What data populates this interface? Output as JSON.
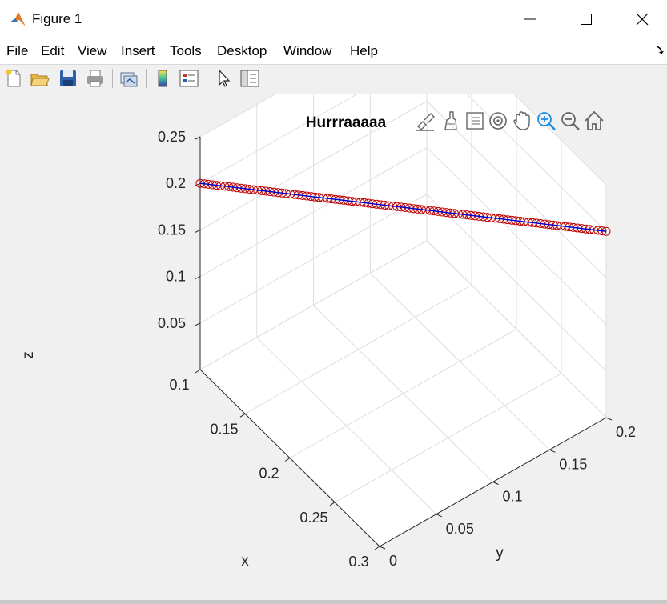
{
  "window": {
    "title": "Figure 1"
  },
  "menu": [
    "File",
    "Edit",
    "View",
    "Insert",
    "Tools",
    "Desktop",
    "Window",
    "Help"
  ],
  "colors": {
    "marker": "#c00000",
    "line": "#0000cc",
    "grid": "#dedede",
    "axis": "#262626",
    "zoom_active": "#1a8fe3"
  },
  "toolbar_icons": [
    "new-figure-icon",
    "open-file-icon",
    "save-icon",
    "print-icon",
    "link-plot-icon",
    "insert-colorbar-icon",
    "insert-legend-icon",
    "edit-plot-arrow-icon",
    "property-inspector-icon"
  ],
  "axes_toolbar_icons": [
    "brush-data-icon",
    "data-tips-icon",
    "rotate-3d-icon",
    "pan-icon",
    "zoom-in-icon",
    "zoom-out-icon",
    "home-icon"
  ],
  "chart_data": {
    "type": "scatter3d",
    "title": "Hurrraaaaa",
    "xlabel": "x",
    "ylabel": "y",
    "zlabel": "z",
    "xlim": [
      0.1,
      0.3
    ],
    "ylim": [
      0,
      0.2
    ],
    "zlim": [
      0,
      0.25
    ],
    "xticks": [
      "0.1",
      "0.15",
      "0.2",
      "0.25",
      "0.3"
    ],
    "yticks": [
      "0",
      "0.05",
      "0.1",
      "0.15",
      "0.2"
    ],
    "zticks": [
      "0.05",
      "0.1",
      "0.15",
      "0.2",
      "0.25"
    ],
    "grid": true,
    "series": [
      {
        "marker": "o",
        "line": true,
        "n_points": 100,
        "start": [
          0.1,
          0.0,
          0.2
        ],
        "end": [
          0.3,
          0.2,
          0.2
        ]
      }
    ]
  }
}
